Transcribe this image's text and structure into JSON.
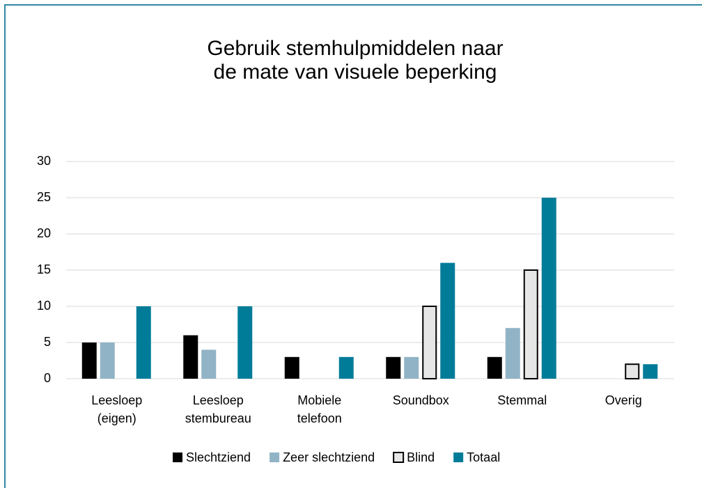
{
  "chart_data": {
    "type": "bar",
    "title": "Gebruik stemhulpmiddelen naar de mate van visuele beperking",
    "categories": [
      "Leesloep (eigen)",
      "Leesloep stembureau",
      "Mobiele telefoon",
      "Soundbox",
      "Stemmal",
      "Overig"
    ],
    "series": [
      {
        "name": "Slechtziend",
        "color": "#000000",
        "values": [
          5,
          6,
          3,
          3,
          3,
          0
        ]
      },
      {
        "name": "Zeer slechtziend",
        "color": "#91b3c6",
        "values": [
          5,
          4,
          0,
          3,
          7,
          0
        ]
      },
      {
        "name": "Blind",
        "color": "#e6e6e6",
        "values": [
          0,
          0,
          0,
          10,
          15,
          2
        ]
      },
      {
        "name": "Totaal",
        "color": "#007c99",
        "values": [
          10,
          10,
          3,
          16,
          25,
          2
        ]
      }
    ],
    "ylim": [
      0,
      30
    ],
    "yticks": [
      0,
      5,
      10,
      15,
      20,
      25,
      30
    ],
    "grid": true,
    "legend": "bottom"
  }
}
